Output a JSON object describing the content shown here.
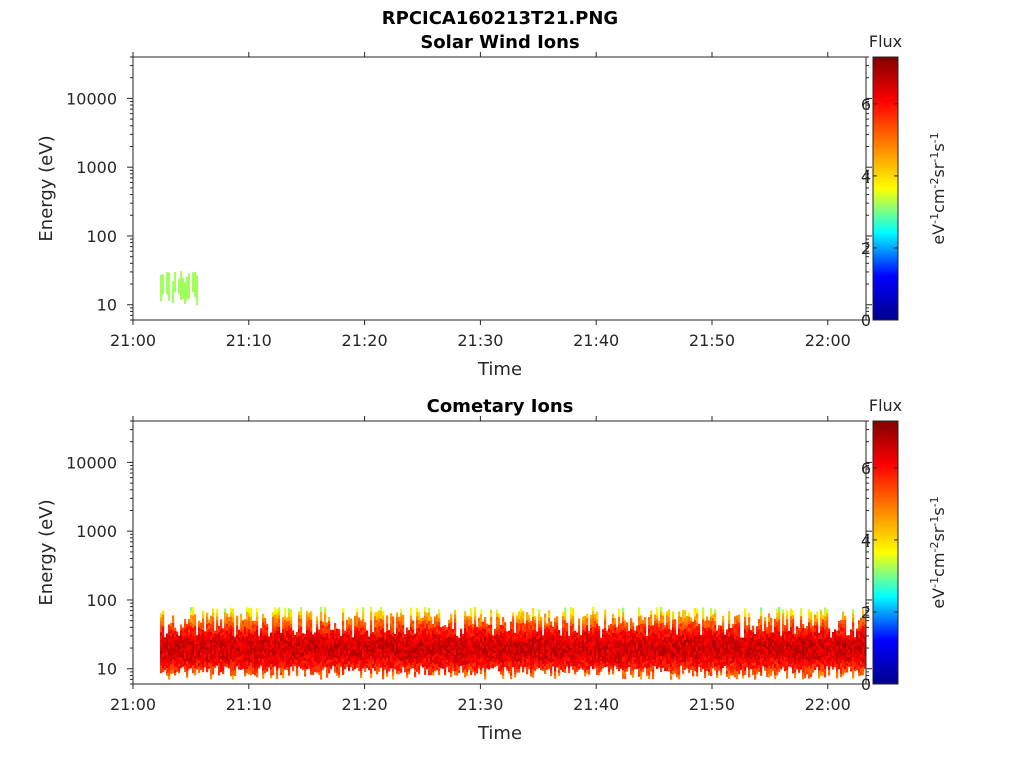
{
  "title": "RPCICA160213T21.PNG",
  "colors": {
    "colormap": [
      "#00008f",
      "#0000ff",
      "#00ffff",
      "#ffff00",
      "#ff8000",
      "#ff0000",
      "#800000"
    ],
    "axis": "#262626"
  },
  "chart_data": [
    {
      "type": "heatmap",
      "title": "Solar Wind Ions",
      "xlabel": "Time",
      "ylabel": "Energy (eV)",
      "x_ticks": [
        "21:00",
        "21:10",
        "21:20",
        "21:30",
        "21:40",
        "21:50",
        "22:00"
      ],
      "y_ticks": [
        "10",
        "100",
        "1000",
        "10000"
      ],
      "y_scale": "log",
      "ylim": [
        6,
        40000
      ],
      "xlim_minutes": [
        0,
        63.3
      ],
      "colorbar": {
        "label": "Flux",
        "unit": "eV-1cm-2sr-1s-1",
        "ticks": [
          "0",
          "2",
          "4",
          "6"
        ],
        "range": [
          0,
          7.3
        ]
      },
      "signal": [
        {
          "t_start": "21:02:20",
          "t_end": "21:05:40",
          "energy_min_eV": 9,
          "energy_max_eV": 32,
          "flux": 3.2
        }
      ]
    },
    {
      "type": "heatmap",
      "title": "Cometary Ions",
      "xlabel": "Time",
      "ylabel": "Energy (eV)",
      "x_ticks": [
        "21:00",
        "21:10",
        "21:20",
        "21:30",
        "21:40",
        "21:50",
        "22:00"
      ],
      "y_ticks": [
        "10",
        "100",
        "1000",
        "10000"
      ],
      "y_scale": "log",
      "ylim": [
        6,
        40000
      ],
      "xlim_minutes": [
        0,
        63.3
      ],
      "colorbar": {
        "label": "Flux",
        "unit": "eV-1cm-2sr-1s-1",
        "ticks": [
          "0",
          "2",
          "4",
          "6"
        ],
        "range": [
          0,
          7.3
        ]
      },
      "band": {
        "t_start": "21:02:20",
        "t_end": "22:03:20",
        "energy_min_eV": 7,
        "energy_max_eV": 80,
        "peak_energy_eV": 20,
        "peak_flux": 6.5,
        "edge_flux": 3.0
      }
    }
  ]
}
